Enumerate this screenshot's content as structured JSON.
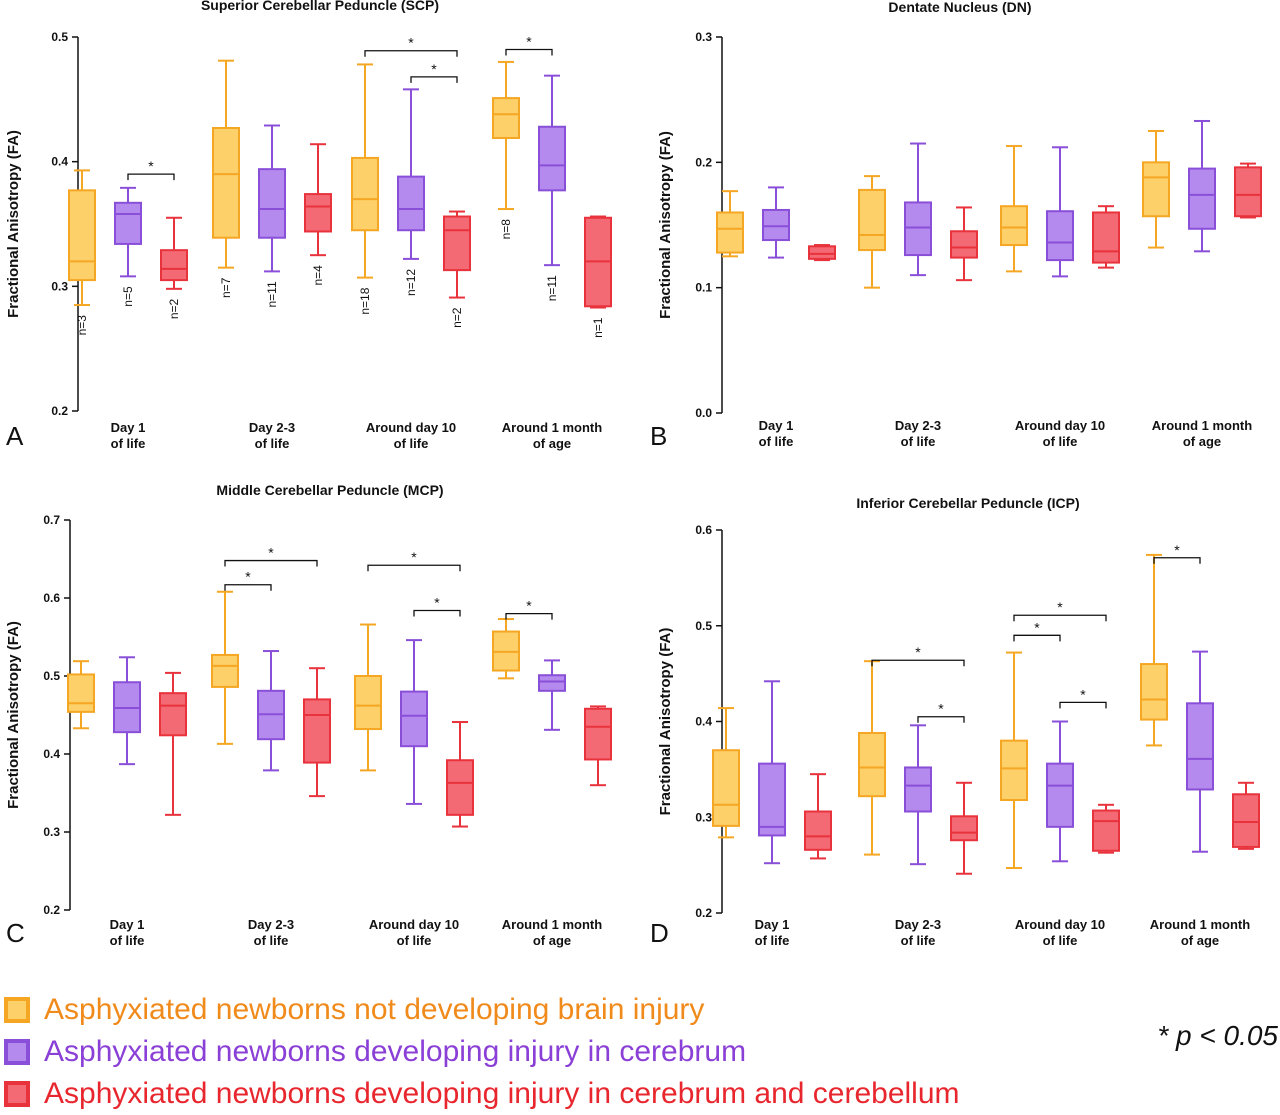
{
  "chart_data": [
    {
      "type": "box",
      "panel_letter": "A",
      "title": "Superior Cerebellar Peduncle  (SCP)",
      "ylabel": "Fractional Anisotropy (FA)",
      "ylim": [
        0.2,
        0.5
      ],
      "yticks": [
        "0.2",
        "0.3",
        "0.4",
        "0.5"
      ],
      "categories": [
        [
          "Day 1",
          "of life"
        ],
        [
          "Day 2-3",
          "of life"
        ],
        [
          "Around day 10",
          "of life"
        ],
        [
          "Around 1 month",
          "of age"
        ]
      ],
      "series": [
        {
          "color": "#f5a623",
          "boxes": [
            {
              "min": 0.285,
              "q1": 0.305,
              "median": 0.32,
              "q3": 0.377,
              "max": 0.393,
              "n": "n=3"
            },
            {
              "min": 0.315,
              "q1": 0.339,
              "median": 0.39,
              "q3": 0.427,
              "max": 0.481,
              "n": "n=7"
            },
            {
              "min": 0.307,
              "q1": 0.345,
              "median": 0.37,
              "q3": 0.403,
              "max": 0.478,
              "n": "n=18"
            },
            {
              "min": 0.362,
              "q1": 0.419,
              "median": 0.438,
              "q3": 0.451,
              "max": 0.48,
              "n": "n=8"
            }
          ]
        },
        {
          "color": "#8a4fd8",
          "boxes": [
            {
              "min": 0.308,
              "q1": 0.334,
              "median": 0.358,
              "q3": 0.367,
              "max": 0.379,
              "n": "n=5"
            },
            {
              "min": 0.312,
              "q1": 0.339,
              "median": 0.362,
              "q3": 0.394,
              "max": 0.429,
              "n": "n=11"
            },
            {
              "min": 0.322,
              "q1": 0.345,
              "median": 0.362,
              "q3": 0.388,
              "max": 0.458,
              "n": "n=12"
            },
            {
              "min": 0.317,
              "q1": 0.377,
              "median": 0.397,
              "q3": 0.428,
              "max": 0.469,
              "n": "n=11"
            }
          ]
        },
        {
          "color": "#e8323c",
          "boxes": [
            {
              "min": 0.298,
              "q1": 0.305,
              "median": 0.314,
              "q3": 0.329,
              "max": 0.355,
              "n": "n=2"
            },
            {
              "min": 0.325,
              "q1": 0.344,
              "median": 0.364,
              "q3": 0.374,
              "max": 0.414,
              "n": "n=4"
            },
            {
              "min": 0.291,
              "q1": 0.313,
              "median": 0.345,
              "q3": 0.356,
              "max": 0.36,
              "n": "n=2"
            },
            {
              "min": 0.283,
              "q1": 0.284,
              "median": 0.32,
              "q3": 0.355,
              "max": 0.356,
              "n": "n=1"
            }
          ]
        }
      ],
      "significance": [
        {
          "group": 0,
          "from": 1,
          "to": 2,
          "y": 0.39,
          "label": "*"
        },
        {
          "group": 2,
          "from": 0,
          "to": 2,
          "y": 0.489,
          "label": "*"
        },
        {
          "group": 2,
          "from": 1,
          "to": 2,
          "y": 0.468,
          "label": "*"
        },
        {
          "group": 3,
          "from": 0,
          "to": 1,
          "y": 0.49,
          "label": "*"
        }
      ]
    },
    {
      "type": "box",
      "panel_letter": "B",
      "title": "Dentate Nucleus (DN)",
      "ylabel": "Fractional Anisotropy (FA)",
      "ylim": [
        0.0,
        0.3
      ],
      "yticks": [
        "0.0",
        "0.1",
        "0.2",
        "0.3"
      ],
      "categories": [
        [
          "Day 1",
          "of life"
        ],
        [
          "Day 2-3",
          "of life"
        ],
        [
          "Around day 10",
          "of life"
        ],
        [
          "Around 1 month",
          "of age"
        ]
      ],
      "series": [
        {
          "color": "#f5a623",
          "boxes": [
            {
              "min": 0.125,
              "q1": 0.128,
              "median": 0.147,
              "q3": 0.16,
              "max": 0.177
            },
            {
              "min": 0.1,
              "q1": 0.13,
              "median": 0.142,
              "q3": 0.178,
              "max": 0.189
            },
            {
              "min": 0.113,
              "q1": 0.134,
              "median": 0.148,
              "q3": 0.165,
              "max": 0.213
            },
            {
              "min": 0.132,
              "q1": 0.157,
              "median": 0.188,
              "q3": 0.2,
              "max": 0.225
            }
          ]
        },
        {
          "color": "#8a4fd8",
          "boxes": [
            {
              "min": 0.124,
              "q1": 0.138,
              "median": 0.149,
              "q3": 0.162,
              "max": 0.18
            },
            {
              "min": 0.11,
              "q1": 0.126,
              "median": 0.148,
              "q3": 0.168,
              "max": 0.215
            },
            {
              "min": 0.109,
              "q1": 0.122,
              "median": 0.136,
              "q3": 0.161,
              "max": 0.212
            },
            {
              "min": 0.129,
              "q1": 0.147,
              "median": 0.174,
              "q3": 0.195,
              "max": 0.233
            }
          ]
        },
        {
          "color": "#e8323c",
          "boxes": [
            {
              "min": 0.122,
              "q1": 0.123,
              "median": 0.127,
              "q3": 0.133,
              "max": 0.134
            },
            {
              "min": 0.106,
              "q1": 0.124,
              "median": 0.132,
              "q3": 0.145,
              "max": 0.164
            },
            {
              "min": 0.116,
              "q1": 0.12,
              "median": 0.129,
              "q3": 0.16,
              "max": 0.165
            },
            {
              "min": 0.156,
              "q1": 0.157,
              "median": 0.174,
              "q3": 0.196,
              "max": 0.199
            }
          ]
        }
      ],
      "significance": []
    },
    {
      "type": "box",
      "panel_letter": "C",
      "title": "Middle Cerebellar Peduncle (MCP)",
      "ylabel": "Fractional Anisotropy (FA)",
      "ylim": [
        0.2,
        0.7
      ],
      "yticks": [
        "0.2",
        "0.3",
        "0.4",
        "0.5",
        "0.6",
        "0.7"
      ],
      "categories": [
        [
          "Day 1",
          "of life"
        ],
        [
          "Day 2-3",
          "of life"
        ],
        [
          "Around day 10",
          "of life"
        ],
        [
          "Around 1 month",
          "of age"
        ]
      ],
      "series": [
        {
          "color": "#f5a623",
          "boxes": [
            {
              "min": 0.433,
              "q1": 0.454,
              "median": 0.465,
              "q3": 0.502,
              "max": 0.519
            },
            {
              "min": 0.413,
              "q1": 0.486,
              "median": 0.513,
              "q3": 0.527,
              "max": 0.608
            },
            {
              "min": 0.379,
              "q1": 0.432,
              "median": 0.462,
              "q3": 0.5,
              "max": 0.566
            },
            {
              "min": 0.497,
              "q1": 0.507,
              "median": 0.531,
              "q3": 0.557,
              "max": 0.573
            }
          ]
        },
        {
          "color": "#8a4fd8",
          "boxes": [
            {
              "min": 0.387,
              "q1": 0.428,
              "median": 0.459,
              "q3": 0.492,
              "max": 0.524
            },
            {
              "min": 0.379,
              "q1": 0.419,
              "median": 0.451,
              "q3": 0.481,
              "max": 0.532
            },
            {
              "min": 0.336,
              "q1": 0.41,
              "median": 0.449,
              "q3": 0.48,
              "max": 0.546
            },
            {
              "min": 0.431,
              "q1": 0.481,
              "median": 0.493,
              "q3": 0.501,
              "max": 0.52
            }
          ]
        },
        {
          "color": "#e8323c",
          "boxes": [
            {
              "min": 0.322,
              "q1": 0.424,
              "median": 0.462,
              "q3": 0.478,
              "max": 0.504
            },
            {
              "min": 0.346,
              "q1": 0.389,
              "median": 0.45,
              "q3": 0.47,
              "max": 0.51
            },
            {
              "min": 0.307,
              "q1": 0.322,
              "median": 0.363,
              "q3": 0.392,
              "max": 0.441
            },
            {
              "min": 0.36,
              "q1": 0.393,
              "median": 0.435,
              "q3": 0.458,
              "max": 0.461
            }
          ]
        }
      ],
      "significance": [
        {
          "group": 1,
          "from": 0,
          "to": 2,
          "y": 0.648,
          "label": "*"
        },
        {
          "group": 1,
          "from": 0,
          "to": 1,
          "y": 0.617,
          "label": "*"
        },
        {
          "group": 2,
          "from": 0,
          "to": 2,
          "y": 0.642,
          "label": "*"
        },
        {
          "group": 2,
          "from": 1,
          "to": 2,
          "y": 0.584,
          "label": "*"
        },
        {
          "group": 3,
          "from": 0,
          "to": 1,
          "y": 0.58,
          "label": "*"
        }
      ]
    },
    {
      "type": "box",
      "panel_letter": "D",
      "title": "Inferior Cerebellar Peduncle (ICP)",
      "ylabel": "Fractional Anisotropy (FA)",
      "ylim": [
        0.2,
        0.6
      ],
      "yticks": [
        "0.2",
        "0.3",
        "0.4",
        "0.5",
        "0.6"
      ],
      "categories": [
        [
          "Day 1",
          "of life"
        ],
        [
          "Day 2-3",
          "of life"
        ],
        [
          "Around day 10",
          "of life"
        ],
        [
          "Around 1 month",
          "of age"
        ]
      ],
      "series": [
        {
          "color": "#f5a623",
          "boxes": [
            {
              "min": 0.279,
              "q1": 0.291,
              "median": 0.313,
              "q3": 0.37,
              "max": 0.414
            },
            {
              "min": 0.261,
              "q1": 0.322,
              "median": 0.352,
              "q3": 0.388,
              "max": 0.463
            },
            {
              "min": 0.247,
              "q1": 0.318,
              "median": 0.351,
              "q3": 0.38,
              "max": 0.472
            },
            {
              "min": 0.375,
              "q1": 0.402,
              "median": 0.423,
              "q3": 0.46,
              "max": 0.574
            }
          ]
        },
        {
          "color": "#8a4fd8",
          "boxes": [
            {
              "min": 0.252,
              "q1": 0.281,
              "median": 0.29,
              "q3": 0.356,
              "max": 0.442
            },
            {
              "min": 0.251,
              "q1": 0.306,
              "median": 0.333,
              "q3": 0.352,
              "max": 0.396
            },
            {
              "min": 0.254,
              "q1": 0.29,
              "median": 0.333,
              "q3": 0.356,
              "max": 0.4
            },
            {
              "min": 0.264,
              "q1": 0.329,
              "median": 0.361,
              "q3": 0.419,
              "max": 0.473
            }
          ]
        },
        {
          "color": "#e8323c",
          "boxes": [
            {
              "min": 0.257,
              "q1": 0.266,
              "median": 0.28,
              "q3": 0.306,
              "max": 0.345
            },
            {
              "min": 0.241,
              "q1": 0.276,
              "median": 0.284,
              "q3": 0.301,
              "max": 0.336
            },
            {
              "min": 0.263,
              "q1": 0.265,
              "median": 0.296,
              "q3": 0.307,
              "max": 0.313
            },
            {
              "min": 0.267,
              "q1": 0.269,
              "median": 0.295,
              "q3": 0.324,
              "max": 0.336
            }
          ]
        }
      ],
      "significance": [
        {
          "group": 1,
          "from": 0,
          "to": 2,
          "y": 0.464,
          "label": "*"
        },
        {
          "group": 1,
          "from": 1,
          "to": 2,
          "y": 0.405,
          "label": "*"
        },
        {
          "group": 2,
          "from": 0,
          "to": 2,
          "y": 0.511,
          "label": "*"
        },
        {
          "group": 2,
          "from": 0,
          "to": 1,
          "y": 0.49,
          "label": "*"
        },
        {
          "group": 2,
          "from": 1,
          "to": 2,
          "y": 0.42,
          "label": "*"
        },
        {
          "group": 3,
          "from": 0,
          "to": 1,
          "y": 0.571,
          "label": "*"
        }
      ]
    }
  ],
  "legend": {
    "items": [
      {
        "label": "Asphyxiated newborns not developing brain injury",
        "color": "#f5a623",
        "fill": "#fdd06a",
        "text_color": "#f08a1a"
      },
      {
        "label": "Asphyxiated newborns developing injury in cerebrum",
        "color": "#8a4fd8",
        "fill": "#b58aef",
        "text_color": "#8a3fd6"
      },
      {
        "label": "Asphyxiated newborns developing injury in cerebrum and cerebellum",
        "color": "#e8323c",
        "fill": "#f46a74",
        "text_color": "#e8262e"
      }
    ],
    "significance_note": "* p < 0.05"
  }
}
